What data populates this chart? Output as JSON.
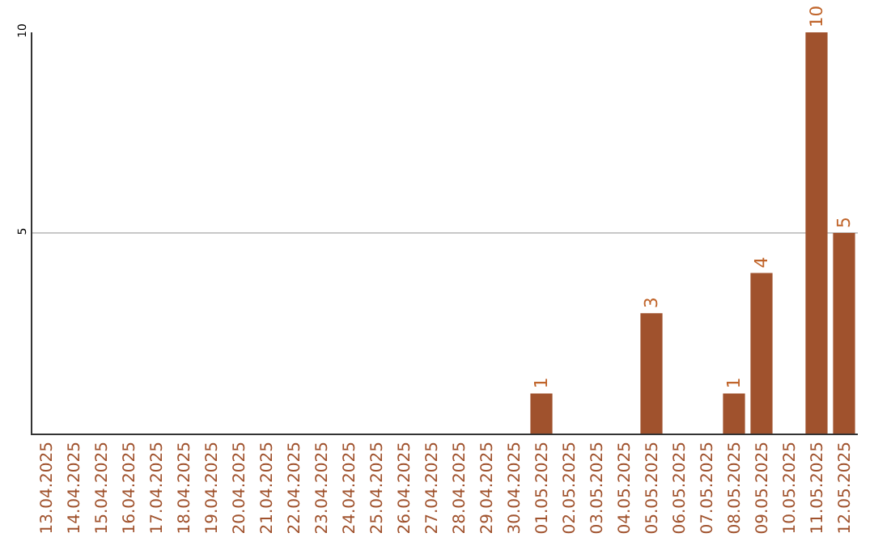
{
  "chart_data": {
    "type": "bar",
    "categories": [
      "13.04.2025",
      "14.04.2025",
      "15.04.2025",
      "16.04.2025",
      "17.04.2025",
      "18.04.2025",
      "19.04.2025",
      "20.04.2025",
      "21.04.2025",
      "22.04.2025",
      "23.04.2025",
      "24.04.2025",
      "25.04.2025",
      "26.04.2025",
      "27.04.2025",
      "28.04.2025",
      "29.04.2025",
      "30.04.2025",
      "01.05.2025",
      "02.05.2025",
      "03.05.2025",
      "04.05.2025",
      "05.05.2025",
      "06.05.2025",
      "07.05.2025",
      "08.05.2025",
      "09.05.2025",
      "10.05.2025",
      "11.05.2025",
      "12.05.2025"
    ],
    "values": [
      0,
      0,
      0,
      0,
      0,
      0,
      0,
      0,
      0,
      0,
      0,
      0,
      0,
      0,
      0,
      0,
      0,
      0,
      1,
      0,
      0,
      0,
      3,
      0,
      0,
      1,
      4,
      0,
      10,
      5
    ],
    "value_labels": [
      null,
      null,
      null,
      null,
      null,
      null,
      null,
      null,
      null,
      null,
      null,
      null,
      null,
      null,
      null,
      null,
      null,
      null,
      "1",
      null,
      null,
      null,
      "3",
      null,
      null,
      "1",
      "4",
      null,
      "10",
      "5"
    ],
    "color": "#a0522d",
    "ylim": [
      0,
      10
    ],
    "yticks": [
      5,
      10
    ],
    "grid": "y",
    "legend": false
  }
}
